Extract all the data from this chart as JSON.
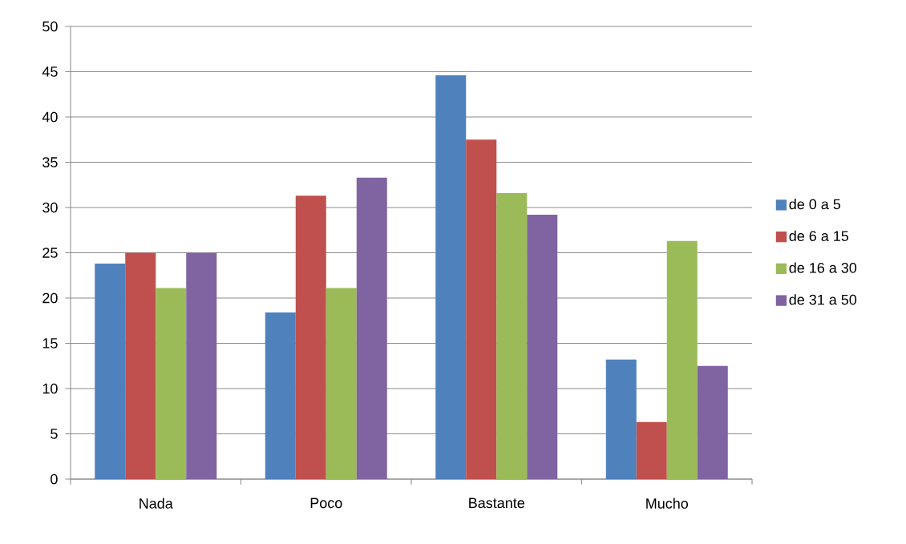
{
  "chart_data": {
    "type": "bar",
    "categories": [
      "Nada",
      "Poco",
      "Bastante",
      "Mucho"
    ],
    "series": [
      {
        "name": "de 0 a 5",
        "color": "#4f81bd",
        "values": [
          23.8,
          18.4,
          44.6,
          13.2
        ]
      },
      {
        "name": "de 6 a 15",
        "color": "#c0504d",
        "values": [
          25,
          31.3,
          37.5,
          6.3
        ]
      },
      {
        "name": "de 16 a 30",
        "color": "#9bbb59",
        "values": [
          21.1,
          21.1,
          31.6,
          26.3
        ]
      },
      {
        "name": "de 31 a 50",
        "color": "#8064a2",
        "values": [
          25,
          33.3,
          29.2,
          12.5
        ]
      }
    ],
    "ylim": [
      0,
      50
    ],
    "yticks": [
      0,
      5,
      10,
      15,
      20,
      25,
      30,
      35,
      40,
      45,
      50
    ],
    "grid": "y",
    "legend": "right"
  }
}
